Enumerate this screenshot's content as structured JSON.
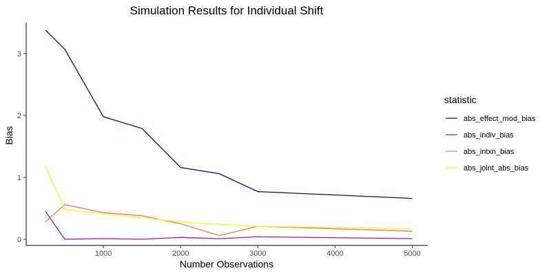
{
  "chart_data": {
    "type": "line",
    "title": "Simulation Results for Individual Shift",
    "xlabel": "Number Observations",
    "ylabel": "Bias",
    "xlim": [
      0,
      5200
    ],
    "ylim": [
      -0.1,
      3.5
    ],
    "x_ticks": [
      1000,
      2000,
      3000,
      4000,
      5000
    ],
    "y_ticks": [
      0,
      1,
      2,
      3
    ],
    "grid": false,
    "legend_position": "right",
    "legend_title": "statistic",
    "x": [
      250,
      500,
      1000,
      1500,
      2000,
      2500,
      3000,
      5000
    ],
    "series": [
      {
        "name": "abs_effect_mod_bias",
        "color": "#0d0887",
        "values": [
          3.38,
          3.07,
          1.98,
          1.79,
          1.16,
          1.06,
          0.77,
          0.66
        ]
      },
      {
        "name": "abs_indiv_bias",
        "color": "#9c179e",
        "values": [
          0.45,
          0.0,
          0.01,
          0.0,
          0.03,
          0.01,
          0.04,
          0.01
        ]
      },
      {
        "name": "abs_intxn_bias",
        "color": "#ed7953",
        "values": [
          0.28,
          0.56,
          0.43,
          0.38,
          0.25,
          0.06,
          0.21,
          0.13
        ]
      },
      {
        "name": "abs_joint_abs_bias",
        "color": "#f0f921",
        "values": [
          1.18,
          0.48,
          0.41,
          0.35,
          0.28,
          0.24,
          0.21,
          0.17
        ]
      }
    ]
  }
}
